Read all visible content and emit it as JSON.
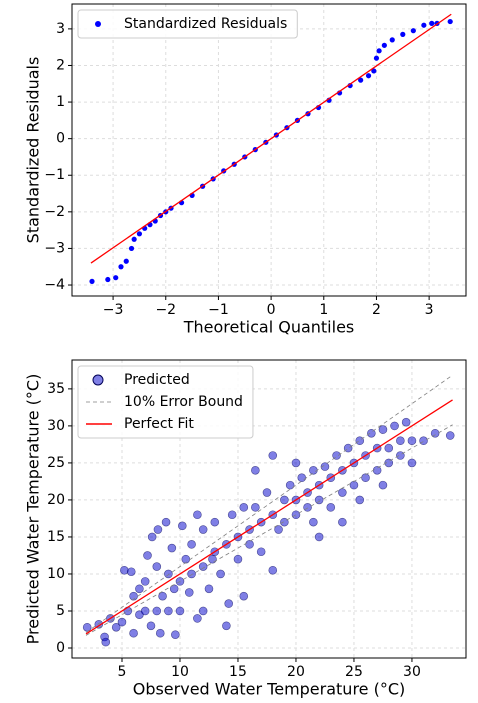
{
  "chart_data": [
    {
      "type": "scatter",
      "xlabel": "Theoretical Quantiles",
      "ylabel": "Standardized Residuals",
      "xlim": [
        -3.78,
        3.7
      ],
      "ylim": [
        -4.3,
        3.68
      ],
      "xticks": [
        {
          "value": -3,
          "label": "−3"
        },
        {
          "value": -2,
          "label": "−2"
        },
        {
          "value": -1,
          "label": "−1"
        },
        0,
        1,
        2,
        3
      ],
      "yticks": [
        {
          "value": -4,
          "label": "−4"
        },
        {
          "value": -3,
          "label": "−3"
        },
        {
          "value": -2,
          "label": "−2"
        },
        {
          "value": -1,
          "label": "−1"
        },
        0,
        1,
        2,
        3
      ],
      "grid": true,
      "legend": "upper left",
      "series": [
        {
          "name": "Standardized Residuals",
          "type": "scatter",
          "color": "#0000ff",
          "x": [
            -3.4,
            -3.1,
            -2.95,
            -2.85,
            -2.75,
            -2.65,
            -2.6,
            -2.5,
            -2.4,
            -2.3,
            -2.2,
            -2.1,
            -2.0,
            -1.9,
            -1.7,
            -1.5,
            -1.3,
            -1.1,
            -0.9,
            -0.7,
            -0.5,
            -0.3,
            -0.1,
            0.1,
            0.3,
            0.5,
            0.7,
            0.9,
            1.1,
            1.3,
            1.5,
            1.7,
            1.85,
            1.95,
            2.0,
            2.05,
            2.15,
            2.3,
            2.5,
            2.7,
            2.9,
            3.05,
            3.15,
            3.4
          ],
          "values": [
            -3.9,
            -3.85,
            -3.8,
            -3.5,
            -3.35,
            -3.0,
            -2.75,
            -2.6,
            -2.45,
            -2.35,
            -2.25,
            -2.1,
            -2.0,
            -1.9,
            -1.75,
            -1.55,
            -1.3,
            -1.1,
            -0.88,
            -0.7,
            -0.5,
            -0.3,
            -0.1,
            0.1,
            0.3,
            0.5,
            0.68,
            0.85,
            1.05,
            1.25,
            1.45,
            1.6,
            1.72,
            1.85,
            2.2,
            2.4,
            2.55,
            2.7,
            2.85,
            2.95,
            3.1,
            3.15,
            3.15,
            3.2
          ]
        },
        {
          "type": "line",
          "color": "#ff0000",
          "x": [
            -3.42,
            3.42
          ],
          "values": [
            -3.4,
            3.4
          ]
        }
      ]
    },
    {
      "type": "scatter",
      "xlabel": "Observed Water Temperature (°C)",
      "ylabel": "Predicted Water Temperature (°C)",
      "xlim": [
        0.69,
        34.66
      ],
      "ylim": [
        -1.35,
        38.9
      ],
      "xticks": [
        5,
        10,
        15,
        20,
        25,
        30
      ],
      "yticks": [
        0,
        5,
        10,
        15,
        20,
        25,
        30,
        35
      ],
      "grid": true,
      "legend": "upper left",
      "series": [
        {
          "name": "Predicted",
          "type": "scatter",
          "color": "#0000cc",
          "edgecolor": "#000055",
          "alpha": 0.5,
          "x": [
            2,
            3,
            3.5,
            3.6,
            4,
            4.5,
            5,
            5.2,
            5.5,
            5.8,
            6,
            6,
            6.5,
            6.5,
            7,
            7,
            7.2,
            7.5,
            7.6,
            8,
            8,
            8.1,
            8.3,
            8.5,
            8.8,
            9,
            9,
            9.3,
            9.5,
            9.6,
            10,
            10,
            10.2,
            10.5,
            10.8,
            11,
            11,
            11.5,
            11.5,
            12,
            12,
            12.5,
            12.8,
            13,
            13,
            13.5,
            14,
            14.2,
            14.5,
            15,
            15,
            15.5,
            15.5,
            16,
            16,
            16.5,
            17,
            17,
            17.5,
            18,
            18,
            18.5,
            19,
            19,
            19.5,
            20,
            20,
            20.5,
            21,
            21,
            21.5,
            21.5,
            22,
            22,
            22.5,
            23,
            23,
            23.5,
            24,
            24,
            24.5,
            25,
            25,
            25.5,
            25.5,
            26,
            26,
            26.5,
            27,
            27,
            27.5,
            27.5,
            28,
            28,
            28.5,
            29,
            29,
            29.5,
            30,
            30,
            31,
            32,
            33.3,
            16.5,
            18,
            22,
            24,
            14,
            12,
            20
          ],
          "values": [
            2.8,
            3.2,
            1.5,
            0.8,
            4,
            2.8,
            3.5,
            10.5,
            5,
            10.3,
            7,
            2,
            8,
            4.5,
            5,
            9,
            12.5,
            3,
            15,
            5,
            11,
            16,
            2,
            7,
            17,
            10,
            5,
            13.5,
            8,
            1.8,
            9,
            5,
            16.5,
            12,
            7.5,
            14,
            10,
            4,
            18,
            11,
            16,
            8,
            12,
            17,
            13,
            10,
            14,
            6,
            18,
            15,
            12,
            19,
            7,
            16,
            14,
            19,
            17,
            13,
            21,
            10.5,
            18,
            16,
            20,
            17,
            22,
            20,
            18,
            23,
            21,
            19,
            24,
            17,
            22,
            20,
            24.5,
            23,
            19,
            26,
            24,
            21,
            27,
            25,
            22,
            28,
            20,
            26,
            23,
            29,
            27,
            24,
            29.5,
            22,
            27,
            25,
            30,
            28,
            26,
            30.5,
            28,
            25,
            28,
            29,
            28.7,
            24,
            26,
            15,
            17,
            3,
            5,
            25
          ]
        },
        {
          "name": "10% Error Bound",
          "type": "line",
          "style": "dashed",
          "color": "#808080",
          "x": [
            1.9,
            33.5
          ],
          "values": [
            2.09,
            36.85
          ],
          "lower": [
            1.71,
            30.15
          ]
        },
        {
          "name": "Perfect Fit",
          "type": "line",
          "color": "#ff0000",
          "x": [
            1.9,
            33.5
          ],
          "values": [
            1.9,
            33.5
          ]
        }
      ]
    }
  ]
}
